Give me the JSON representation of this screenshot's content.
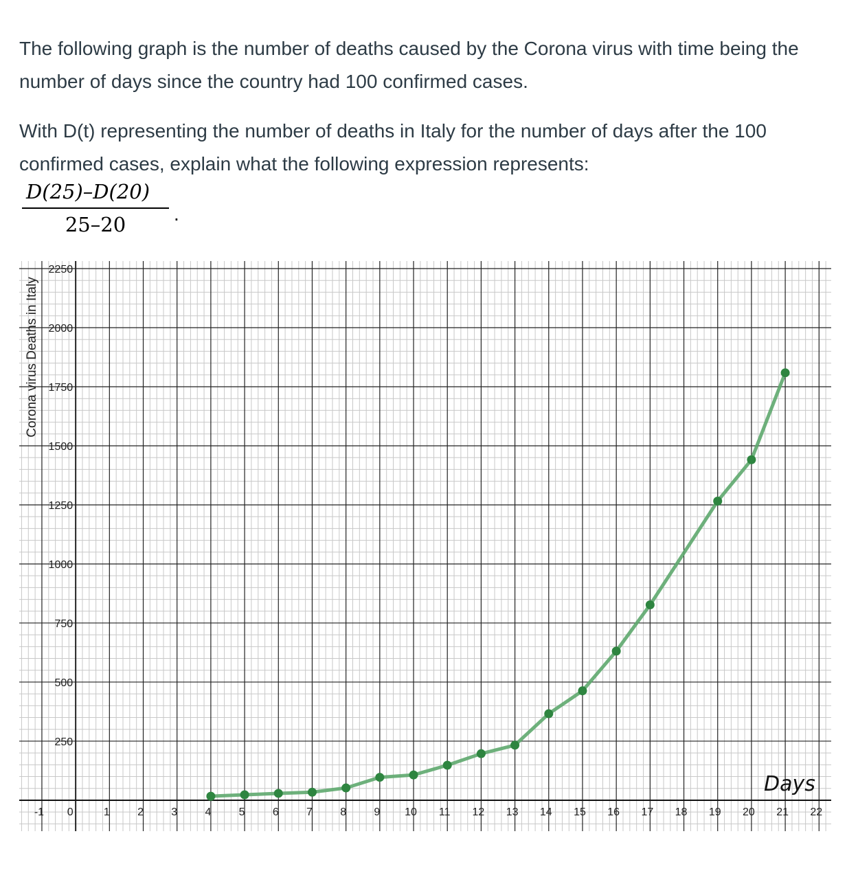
{
  "question": {
    "paragraph1": "The following graph is the number of deaths caused by the Corona virus with time being the number of days since the country had 100 confirmed cases.",
    "paragraph2": "With D(t) representing the number of deaths in Italy for the number of days after the 100 confirmed cases, explain what the following expression represents:",
    "expression_numerator": "D(25)–D(20)",
    "expression_denominator": "25–20",
    "expression_end": "."
  },
  "chart_data": {
    "type": "line",
    "title": "",
    "xlabel": "Days",
    "ylabel": "Corona virus Deaths in Italy",
    "xlim": [
      -1.67,
      22.36
    ],
    "ylim": [
      -131,
      2282
    ],
    "x_ticks": [
      -1,
      0,
      1,
      2,
      3,
      4,
      5,
      6,
      7,
      8,
      9,
      10,
      11,
      12,
      13,
      14,
      15,
      16,
      17,
      18,
      19,
      20,
      21,
      22
    ],
    "y_ticks": [
      250,
      500,
      750,
      1000,
      1250,
      1500,
      1750,
      2000,
      2250
    ],
    "grid": true,
    "line_color": "#5ea86e",
    "marker_color": "#2e8540",
    "x": [
      4,
      5,
      6,
      7,
      8,
      9,
      10,
      11,
      12,
      13,
      14,
      15,
      16,
      17,
      19,
      20,
      21
    ],
    "y": [
      17,
      23,
      29,
      34,
      52,
      97,
      107,
      148,
      197,
      233,
      366,
      463,
      631,
      827,
      1266,
      1441,
      1809
    ]
  }
}
